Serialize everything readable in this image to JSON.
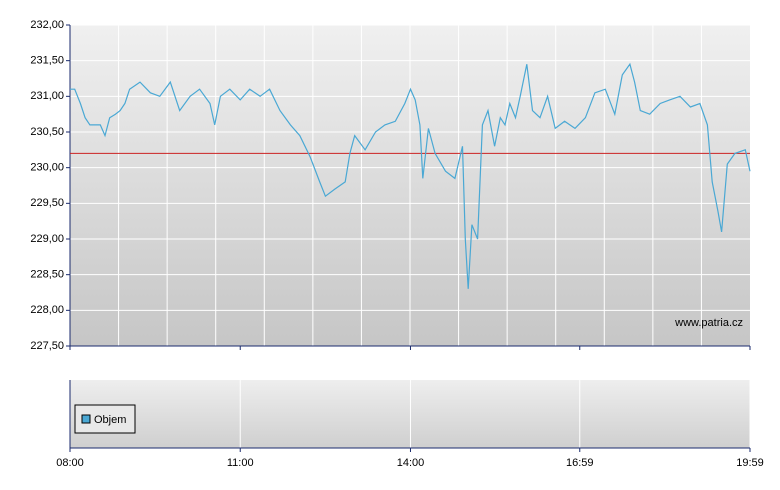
{
  "chart_data": {
    "type": "line",
    "x": [
      "08:00",
      "08:05",
      "08:11",
      "08:16",
      "08:21",
      "08:32",
      "08:37",
      "08:42",
      "08:48",
      "08:53",
      "08:58",
      "09:03",
      "09:14",
      "09:25",
      "09:35",
      "09:46",
      "09:56",
      "10:07",
      "10:17",
      "10:28",
      "10:33",
      "10:39",
      "10:49",
      "11:00",
      "11:10",
      "11:21",
      "11:31",
      "11:42",
      "11:53",
      "12:03",
      "12:14",
      "12:24",
      "12:30",
      "12:40",
      "12:51",
      "12:56",
      "13:01",
      "13:12",
      "13:23",
      "13:33",
      "13:44",
      "13:54",
      "14:00",
      "14:05",
      "14:10",
      "14:13",
      "14:19",
      "14:26",
      "14:37",
      "14:47",
      "14:55",
      "14:58",
      "15:01",
      "15:05",
      "15:11",
      "15:16",
      "15:22",
      "15:29",
      "15:35",
      "15:40",
      "15:45",
      "15:51",
      "15:56",
      "16:03",
      "16:09",
      "16:17",
      "16:25",
      "16:33",
      "16:43",
      "16:54",
      "17:05",
      "17:15",
      "17:26",
      "17:36",
      "17:44",
      "17:52",
      "17:57",
      "18:03",
      "18:13",
      "18:24",
      "18:34",
      "18:45",
      "18:56",
      "19:06",
      "19:14",
      "19:19",
      "19:25",
      "19:29",
      "19:35",
      "19:43",
      "19:54",
      "19:59"
    ],
    "series": [
      {
        "color": "#4aa8d4",
        "values": [
          231.1,
          231.1,
          230.9,
          230.7,
          230.6,
          230.6,
          230.45,
          230.7,
          230.75,
          230.8,
          230.9,
          231.1,
          231.2,
          231.05,
          231.0,
          231.2,
          230.8,
          231.0,
          231.1,
          230.9,
          230.6,
          231.0,
          231.1,
          230.95,
          231.1,
          231.0,
          231.1,
          230.8,
          230.6,
          230.45,
          230.15,
          229.8,
          229.6,
          229.7,
          229.8,
          230.2,
          230.45,
          230.25,
          230.5,
          230.6,
          230.65,
          230.9,
          231.1,
          230.95,
          230.6,
          229.85,
          230.55,
          230.2,
          229.95,
          229.85,
          230.3,
          229.0,
          228.3,
          229.2,
          229.0,
          230.6,
          230.8,
          230.3,
          230.7,
          230.6,
          230.9,
          230.7,
          231.0,
          231.45,
          230.8,
          230.7,
          231.0,
          230.55,
          230.65,
          230.55,
          230.7,
          231.05,
          231.1,
          230.75,
          231.3,
          231.45,
          231.2,
          230.8,
          230.75,
          230.9,
          230.95,
          231.0,
          230.85,
          230.9,
          230.6,
          229.8,
          229.4,
          229.1,
          230.05,
          230.2,
          230.25,
          229.95
        ]
      }
    ],
    "xlim": [
      "08:00",
      "19:59"
    ],
    "xticks": [
      "08:00",
      "11:00",
      "14:00",
      "16:59",
      "19:59"
    ],
    "ylim": [
      227.5,
      232
    ],
    "yticks": [
      {
        "value": 227.5,
        "label": "227,50"
      },
      {
        "value": 228,
        "label": "228,00"
      },
      {
        "value": 228.5,
        "label": "228,50"
      },
      {
        "value": 229,
        "label": "229,00"
      },
      {
        "value": 229.5,
        "label": "229,50"
      },
      {
        "value": 230,
        "label": "230,00"
      },
      {
        "value": 230.5,
        "label": "230,50"
      },
      {
        "value": 231,
        "label": "231,00"
      },
      {
        "value": 231.5,
        "label": "231,50"
      },
      {
        "value": 232,
        "label": "232,00"
      }
    ],
    "reference_line": {
      "value": 230.2,
      "color": "#cc2222"
    },
    "watermark": "www.patria.cz",
    "volume_legend": {
      "label": "Objem",
      "color": "#4aa8d4"
    },
    "grid": true
  }
}
